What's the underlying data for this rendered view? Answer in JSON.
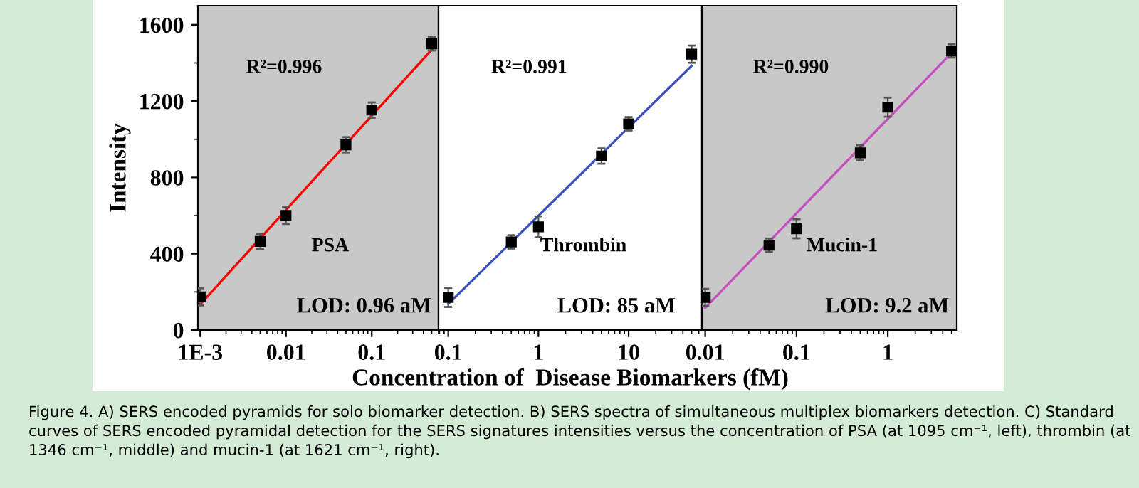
{
  "chart_data": [
    {
      "type": "scatter",
      "ylabel": "Intensity",
      "log": "x",
      "grid": false,
      "legend": false,
      "xlim": [
        0.00094,
        0.6
      ],
      "xticks": [
        {
          "value": 0.001,
          "label": "1E-3"
        },
        0.01,
        0.1
      ],
      "ylim": [
        0,
        1700
      ],
      "yticks": [
        0,
        400,
        800,
        1200,
        1600
      ],
      "series": [
        {
          "marker": "square",
          "color": "#000000",
          "x": [
            0.001,
            0.005,
            0.01,
            0.05,
            0.1,
            0.5
          ],
          "values": [
            174,
            465,
            601,
            971,
            1153,
            1500
          ],
          "errors": [
            45,
            40,
            45,
            40,
            40,
            35
          ]
        },
        {
          "type": "line",
          "color": "#ff0000",
          "x": [
            0.001,
            0.55
          ],
          "values": [
            135,
            1490
          ]
        }
      ],
      "annotations": [
        "R²=0.996",
        "PSA",
        "LOD: 0.96 aM"
      ]
    },
    {
      "type": "scatter",
      "xlabel": "Concentration of  Disease Biomarkers (fM)",
      "log": "x",
      "grid": false,
      "legend": false,
      "tick_labels": "x",
      "xlim": [
        0.078,
        65
      ],
      "xticks": [
        0.1,
        1,
        10
      ],
      "ylim": [
        0,
        1700
      ],
      "yticks": [
        0,
        400,
        800,
        1200,
        1600
      ],
      "series": [
        {
          "marker": "square",
          "color": "#000000",
          "x": [
            0.1,
            0.5,
            1,
            5,
            10,
            50
          ],
          "values": [
            171,
            462,
            541,
            912,
            1081,
            1446
          ],
          "errors": [
            50,
            35,
            55,
            40,
            35,
            45
          ]
        },
        {
          "type": "line",
          "color": "#3a4fc0",
          "x": [
            0.1,
            50
          ],
          "values": [
            137,
            1385
          ]
        }
      ],
      "annotations": [
        "R²=0.991",
        "Thrombin",
        "LOD: 85 aM",
        "Figure 4. A) SERS encoded pyramids for solo biomarker detection. B) SERS spectra of simultaneous multiplex biomarkers detection. C) Standard curves of SERS encoded pyramidal detection for the SERS signatures intensities versus the concentration of PSA (at 1095 cm⁻¹, left), thrombin (at 1346 cm⁻¹, middle) and mucin-1 (at 1621 cm⁻¹, right)."
      ]
    },
    {
      "type": "scatter",
      "log": "x",
      "grid": false,
      "legend": false,
      "tick_labels": "x",
      "xlim": [
        0.0092,
        5.7
      ],
      "xticks": [
        0.01,
        0.1,
        1
      ],
      "ylim": [
        0,
        1700
      ],
      "yticks": [
        0,
        400,
        800,
        1200,
        1600
      ],
      "series": [
        {
          "marker": "square",
          "color": "#000000",
          "x": [
            0.01,
            0.05,
            0.1,
            0.5,
            1,
            5
          ],
          "values": [
            171,
            445,
            531,
            929,
            1168,
            1463
          ],
          "errors": [
            45,
            35,
            50,
            40,
            50,
            35
          ]
        },
        {
          "type": "line",
          "color": "#c54fbf",
          "x": [
            0.01,
            5
          ],
          "values": [
            117,
            1453
          ]
        }
      ],
      "annotations": [
        "R²=0.990",
        "Mucin-1",
        "LOD: 9.2 aM"
      ]
    }
  ]
}
